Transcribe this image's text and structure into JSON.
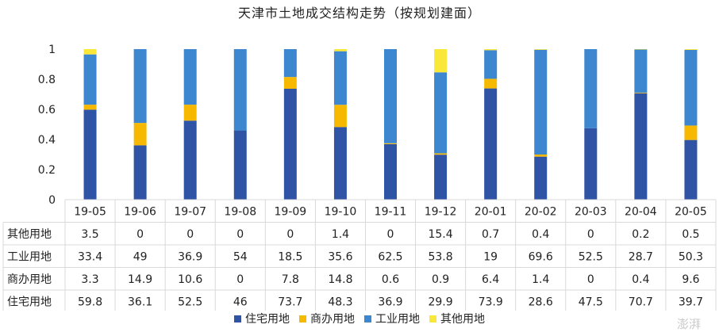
{
  "title": "天津市土地成交结构走势（按规划建面）",
  "watermark": "澎湃",
  "colors": {
    "住宅用地": "#2f54a6",
    "商办用地": "#f7b900",
    "工业用地": "#3d86d0",
    "其他用地": "#f9e83a",
    "grid_line": "#d9d9d9"
  },
  "chart_data": {
    "type": "bar",
    "stacked": true,
    "normalized": true,
    "title": "天津市土地成交结构走势（按规划建面）",
    "categories": [
      "19-05",
      "19-06",
      "19-07",
      "19-08",
      "19-09",
      "19-10",
      "19-11",
      "19-12",
      "20-01",
      "20-02",
      "20-03",
      "20-04",
      "20-05"
    ],
    "ylim": [
      0,
      1
    ],
    "yticks": [
      "0",
      "0.2",
      "0.4",
      "0.6",
      "0.8",
      "1"
    ],
    "legend_position": "bottom",
    "series": [
      {
        "name": "住宅用地",
        "values": [
          59.8,
          36.1,
          52.5,
          46,
          73.7,
          48.3,
          36.9,
          29.9,
          73.9,
          28.6,
          47.5,
          70.7,
          39.7
        ],
        "labels": [
          "59.8",
          "36.1",
          "52.5",
          "46",
          "73.7",
          "48.3",
          "36.9",
          "29.9",
          "73.9",
          "28.6",
          "47.5",
          "70.7",
          "39.7"
        ]
      },
      {
        "name": "商办用地",
        "values": [
          3.3,
          14.9,
          10.6,
          0,
          7.8,
          14.8,
          0.6,
          0.9,
          6.4,
          1.4,
          0,
          0.4,
          9.6
        ],
        "labels": [
          "3.3",
          "14.9",
          "10.6",
          "0",
          "7.8",
          "14.8",
          "0.6",
          "0.9",
          "6.4",
          "1.4",
          "0",
          "0.4",
          "9.6"
        ]
      },
      {
        "name": "工业用地",
        "values": [
          33.4,
          49,
          36.9,
          54,
          18.5,
          35.6,
          62.5,
          53.8,
          19,
          69.6,
          52.5,
          28.7,
          50.3
        ],
        "labels": [
          "33.4",
          "49",
          "36.9",
          "54",
          "18.5",
          "35.6",
          "62.5",
          "53.8",
          "19",
          "69.6",
          "52.5",
          "28.7",
          "50.3"
        ]
      },
      {
        "name": "其他用地",
        "values": [
          3.5,
          0,
          0,
          0,
          0,
          1.4,
          0,
          15.4,
          0.7,
          0.4,
          0,
          0.2,
          0.5
        ],
        "labels": [
          "3.5",
          "0",
          "0",
          "0",
          "0",
          "1.4",
          "0",
          "15.4",
          "0.7",
          "0.4",
          "0",
          "0.2",
          "0.5"
        ]
      }
    ],
    "table_row_order": [
      "其他用地",
      "工业用地",
      "商办用地",
      "住宅用地"
    ]
  }
}
